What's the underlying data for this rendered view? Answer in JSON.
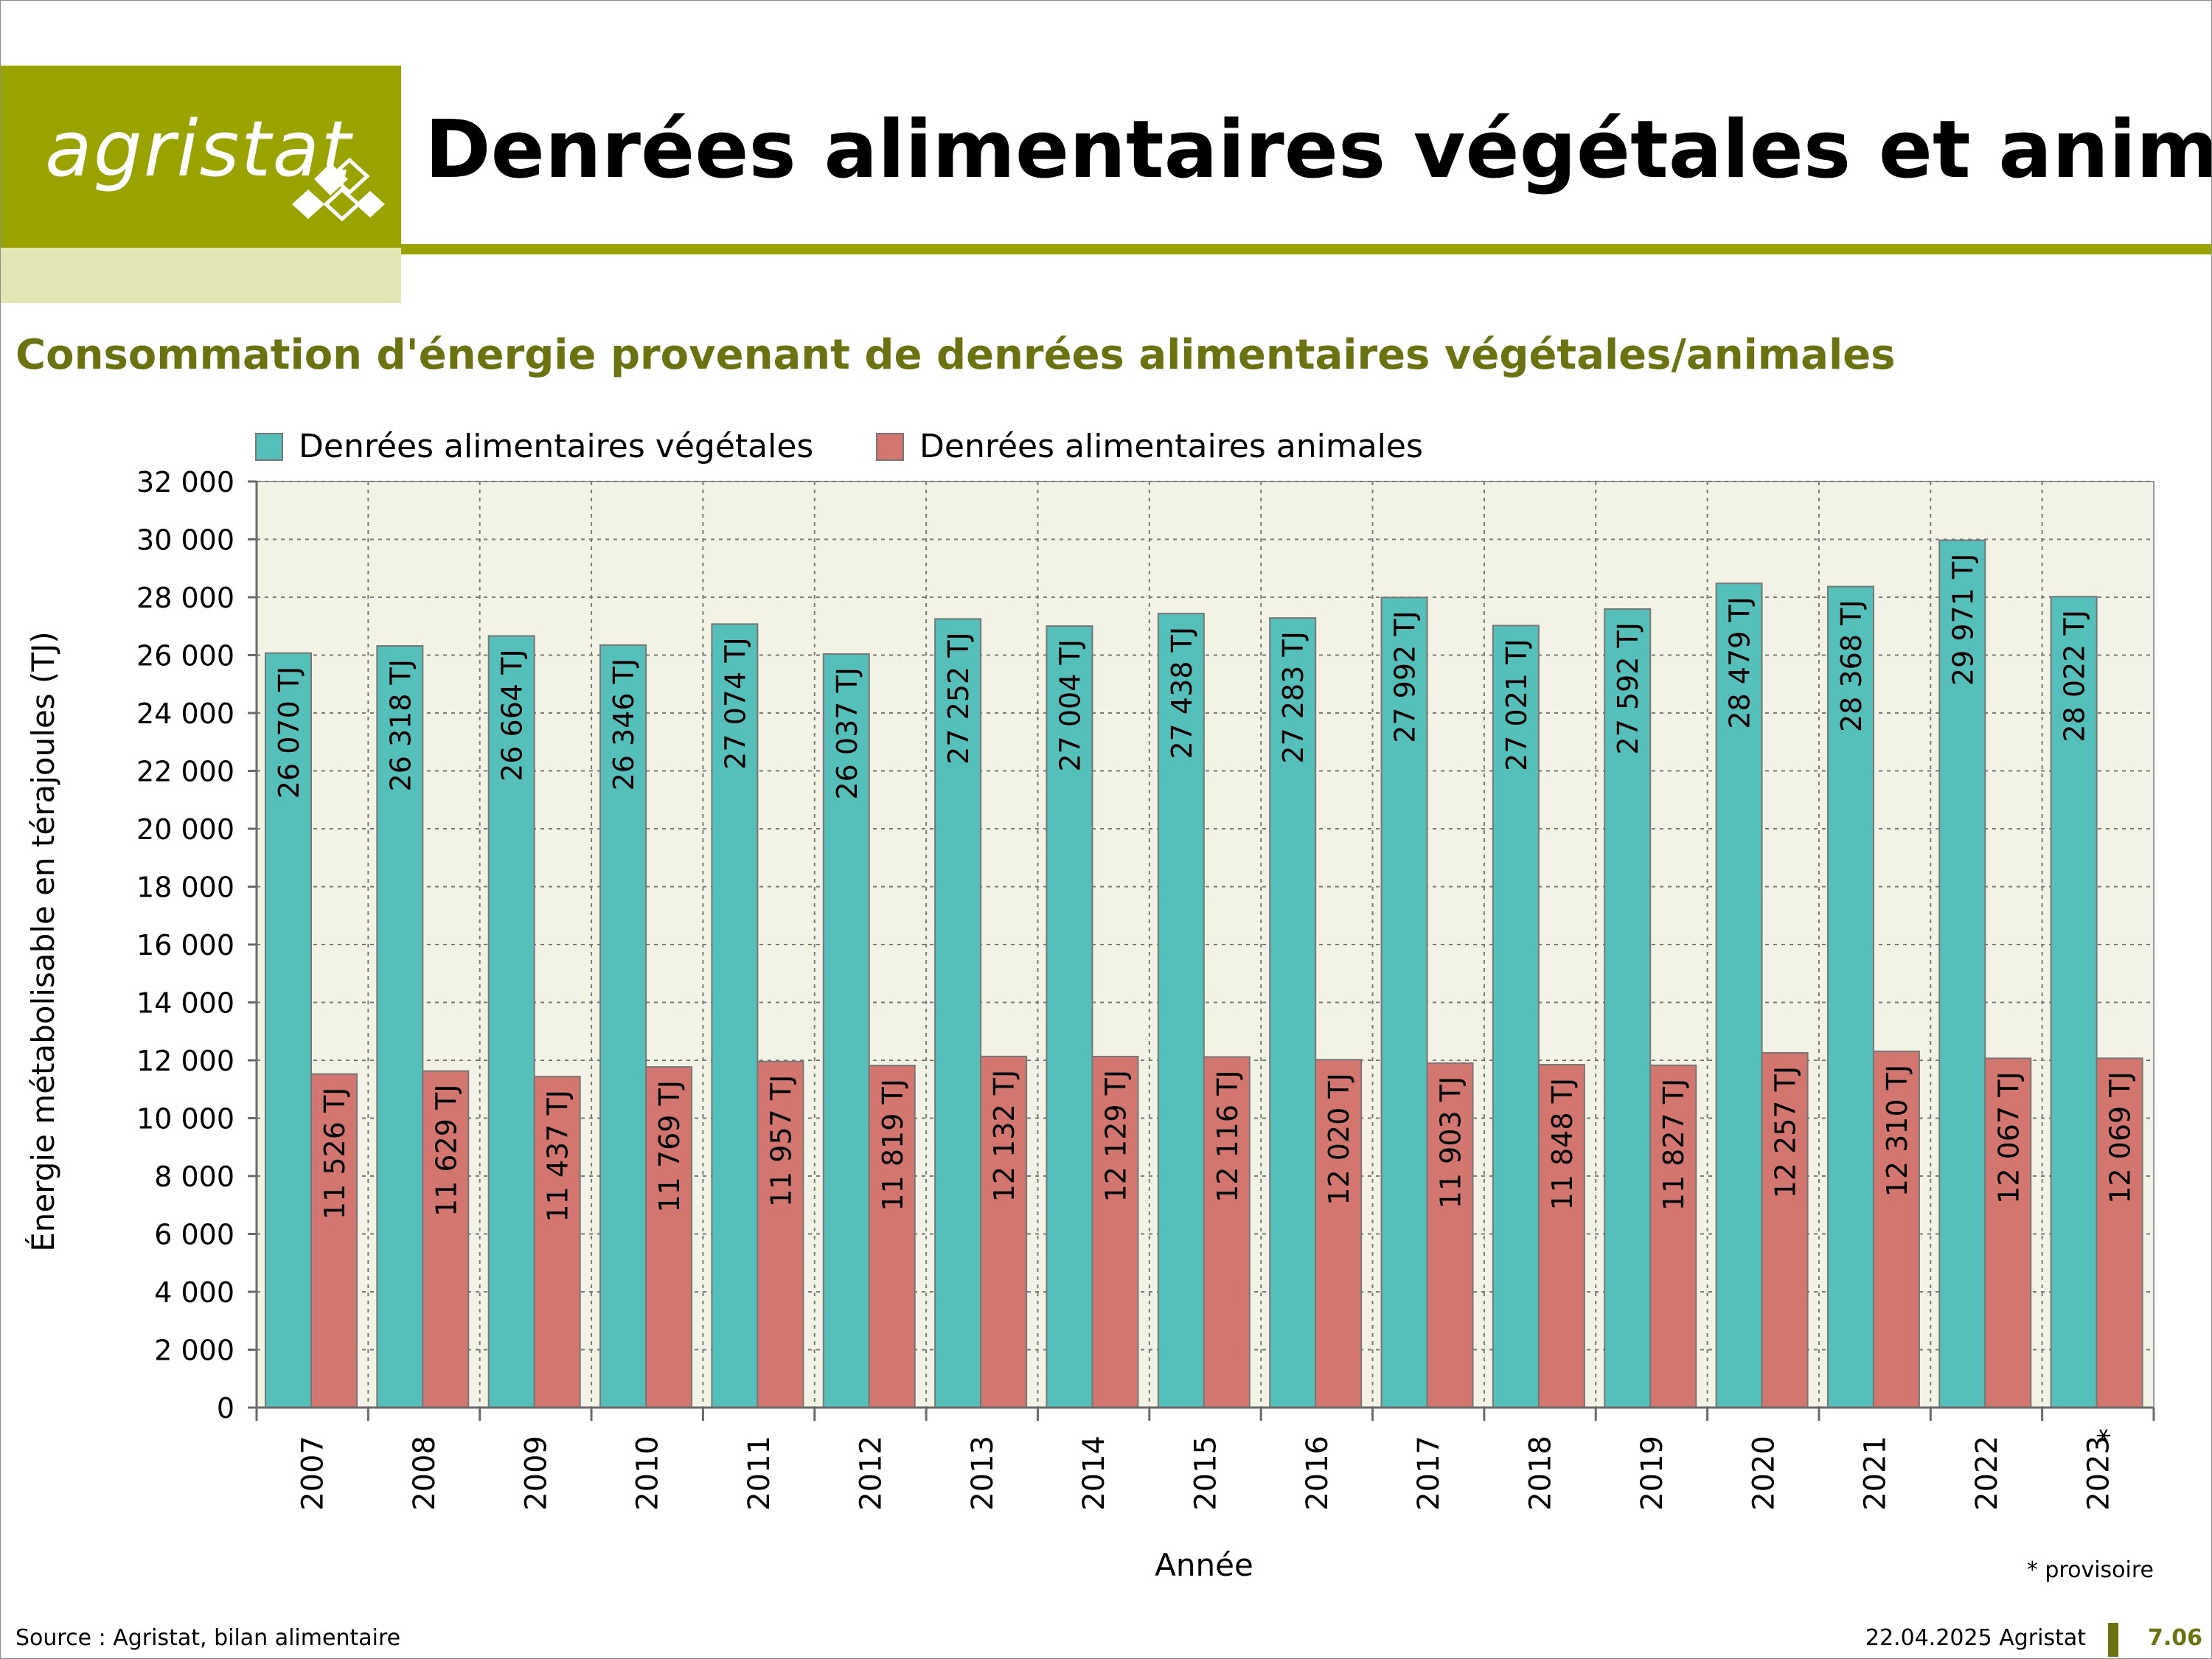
{
  "header": {
    "logo_text": "agristat",
    "title": "Denrées alimentaires végétales et animales"
  },
  "subtitle": "Consommation d'énergie provenant de denrées alimentaires végétales/animales",
  "colors": {
    "brand_olive": "#9aa400",
    "brand_pale": "#e2e6b4",
    "subtitle_text": "#6b7311",
    "plot_background": "#f3f3e5",
    "vegetal_bar": "#55bfb9",
    "animal_bar": "#d47670"
  },
  "chart_data": {
    "type": "bar",
    "categories": [
      "2007",
      "2008",
      "2009",
      "2010",
      "2011",
      "2012",
      "2013",
      "2014",
      "2015",
      "2016",
      "2017",
      "2018",
      "2019",
      "2020",
      "2021",
      "2022",
      "2023"
    ],
    "category_marks": [
      "",
      "",
      "",
      "",
      "",
      "",
      "",
      "",
      "",
      "",
      "",
      "",
      "",
      "",
      "",
      "",
      "*"
    ],
    "series": [
      {
        "name": "Denrées alimentaires végétales",
        "values": [
          26070,
          26318,
          26664,
          26346,
          27074,
          26037,
          27252,
          27004,
          27438,
          27283,
          27992,
          27021,
          27592,
          28479,
          28368,
          29971,
          28022
        ],
        "labels": [
          "26 070 TJ",
          "26 318 TJ",
          "26 664 TJ",
          "26 346 TJ",
          "27 074 TJ",
          "26 037 TJ",
          "27 252 TJ",
          "27 004 TJ",
          "27 438 TJ",
          "27 283 TJ",
          "27 992 TJ",
          "27 021 TJ",
          "27 592 TJ",
          "28 479 TJ",
          "28 368 TJ",
          "29 971 TJ",
          "28 022 TJ"
        ]
      },
      {
        "name": "Denrées alimentaires animales",
        "values": [
          11526,
          11629,
          11437,
          11769,
          11957,
          11819,
          12132,
          12129,
          12116,
          12020,
          11903,
          11848,
          11827,
          12257,
          12310,
          12067,
          12069
        ],
        "labels": [
          "11 526 TJ",
          "11 629 TJ",
          "11 437 TJ",
          "11 769 TJ",
          "11 957 TJ",
          "11 819 TJ",
          "12 132 TJ",
          "12 129 TJ",
          "12 116 TJ",
          "12 020 TJ",
          "11 903 TJ",
          "11 848 TJ",
          "11 827 TJ",
          "12 257 TJ",
          "12 310 TJ",
          "12 067 TJ",
          "12 069 TJ"
        ]
      }
    ],
    "ylim": [
      0,
      32000
    ],
    "yticks": [
      0,
      2000,
      4000,
      6000,
      8000,
      10000,
      12000,
      14000,
      16000,
      18000,
      20000,
      22000,
      24000,
      26000,
      28000,
      30000,
      32000
    ],
    "ytick_labels": [
      "0",
      "2 000",
      "4 000",
      "6 000",
      "8 000",
      "10 000",
      "12 000",
      "14 000",
      "16 000",
      "18 000",
      "20 000",
      "22 000",
      "24 000",
      "26 000",
      "28 000",
      "30 000",
      "32 000"
    ],
    "xlabel": "Année",
    "ylabel": "Énergie métabolisable en térajoules (TJ)",
    "annotation": "* provisoire",
    "legend_position": "top-left",
    "grid": true
  },
  "footer": {
    "source": "Source : Agristat, bilan alimentaire",
    "date": "22.04.2025 Agristat",
    "page": "7.06"
  }
}
